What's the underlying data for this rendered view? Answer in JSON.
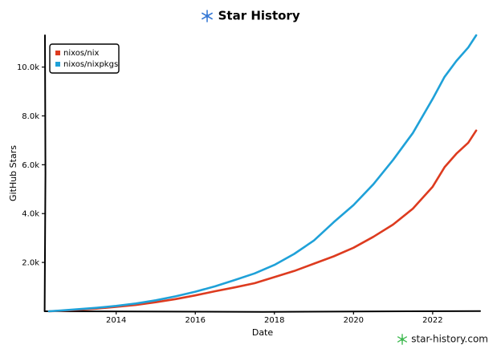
{
  "header": {
    "title": "Star History",
    "logo_icon": "star-history-logo-icon"
  },
  "footer": {
    "brand_text": "star-history.com",
    "brand_icon": "star-history-brand-icon"
  },
  "colors": {
    "nix": "#dd3b1f",
    "nixpkgs": "#1fa1d8",
    "axis": "#000000",
    "brand_green": "#3fb950"
  },
  "chart_data": {
    "type": "line",
    "title": "Star History",
    "xlabel": "Date",
    "ylabel": "GitHub Stars",
    "xlim": [
      2012.2,
      2023.2
    ],
    "ylim": [
      0,
      11300
    ],
    "grid": false,
    "legend_position": "top-left",
    "x_ticks": [
      2014,
      2016,
      2018,
      2020,
      2022
    ],
    "x_tick_labels": [
      "2014",
      "2016",
      "2018",
      "2020",
      "2022"
    ],
    "y_ticks": [
      2000,
      4000,
      6000,
      8000,
      10000
    ],
    "y_tick_labels": [
      "2.0k",
      "4.0k",
      "6.0k",
      "8.0k",
      "10.0k"
    ],
    "series": [
      {
        "name": "nixos/nix",
        "color": "#dd3b1f",
        "points": [
          [
            2012.3,
            0
          ],
          [
            2012.6,
            20
          ],
          [
            2013.0,
            60
          ],
          [
            2013.5,
            110
          ],
          [
            2014.0,
            180
          ],
          [
            2014.5,
            260
          ],
          [
            2015.0,
            370
          ],
          [
            2015.5,
            500
          ],
          [
            2016.0,
            650
          ],
          [
            2016.5,
            820
          ],
          [
            2017.0,
            980
          ],
          [
            2017.5,
            1150
          ],
          [
            2018.0,
            1400
          ],
          [
            2018.5,
            1650
          ],
          [
            2019.0,
            1950
          ],
          [
            2019.5,
            2250
          ],
          [
            2020.0,
            2600
          ],
          [
            2020.5,
            3050
          ],
          [
            2021.0,
            3550
          ],
          [
            2021.5,
            4200
          ],
          [
            2022.0,
            5100
          ],
          [
            2022.3,
            5900
          ],
          [
            2022.6,
            6450
          ],
          [
            2022.9,
            6900
          ],
          [
            2023.1,
            7400
          ]
        ]
      },
      {
        "name": "nixos/nixpkgs",
        "color": "#1fa1d8",
        "points": [
          [
            2012.3,
            0
          ],
          [
            2012.6,
            30
          ],
          [
            2013.0,
            80
          ],
          [
            2013.5,
            140
          ],
          [
            2014.0,
            220
          ],
          [
            2014.5,
            320
          ],
          [
            2015.0,
            450
          ],
          [
            2015.5,
            610
          ],
          [
            2016.0,
            800
          ],
          [
            2016.5,
            1020
          ],
          [
            2017.0,
            1280
          ],
          [
            2017.5,
            1550
          ],
          [
            2018.0,
            1900
          ],
          [
            2018.5,
            2350
          ],
          [
            2019.0,
            2900
          ],
          [
            2019.5,
            3650
          ],
          [
            2020.0,
            4350
          ],
          [
            2020.5,
            5200
          ],
          [
            2021.0,
            6200
          ],
          [
            2021.5,
            7300
          ],
          [
            2022.0,
            8700
          ],
          [
            2022.3,
            9600
          ],
          [
            2022.6,
            10250
          ],
          [
            2022.9,
            10800
          ],
          [
            2023.1,
            11300
          ]
        ]
      }
    ]
  }
}
